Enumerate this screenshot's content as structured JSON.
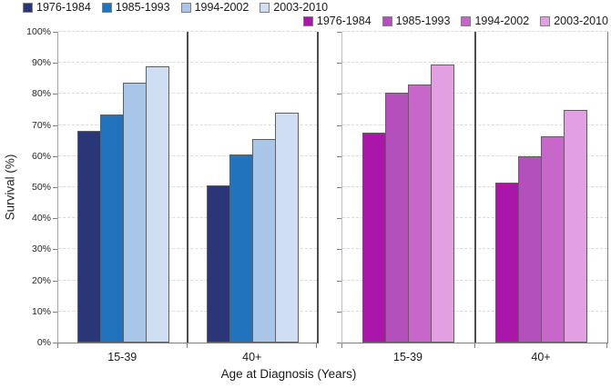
{
  "legends": {
    "blue": {
      "items": [
        {
          "label": "1976-1984",
          "color": "#2B3677"
        },
        {
          "label": "1985-1993",
          "color": "#2173BE"
        },
        {
          "label": "1994-2002",
          "color": "#A9C5E8"
        },
        {
          "label": "2003-2010",
          "color": "#CFDEF2"
        }
      ]
    },
    "pink": {
      "items": [
        {
          "label": "1976-1984",
          "color": "#AA16AA"
        },
        {
          "label": "1985-1993",
          "color": "#B450BC"
        },
        {
          "label": "1994-2002",
          "color": "#C767C9"
        },
        {
          "label": "2003-2010",
          "color": "#E29FE1"
        }
      ]
    }
  },
  "chart_data": {
    "type": "bar",
    "title": "",
    "xlabel": "Age at Diagnosis (Years)",
    "ylabel": "Survival (%)",
    "ylim": [
      0,
      100
    ],
    "y_tick_labels": [
      "0%",
      "10%",
      "20%",
      "30%",
      "40%",
      "50%",
      "60%",
      "70%",
      "80%",
      "90%",
      "100%"
    ],
    "grid": true,
    "legend_position": "top",
    "panels": [
      {
        "name": "blue",
        "categories": [
          "15-39",
          "40+"
        ],
        "series": [
          {
            "name": "1976-1984",
            "color": "#2B3677",
            "values": [
              68,
              50.5
            ]
          },
          {
            "name": "1985-1993",
            "color": "#2173BE",
            "values": [
              73.5,
              60.5
            ]
          },
          {
            "name": "1994-2002",
            "color": "#A9C5E8",
            "values": [
              83.5,
              65.5
            ]
          },
          {
            "name": "2003-2010",
            "color": "#CFDEF2",
            "values": [
              89,
              74
            ]
          }
        ]
      },
      {
        "name": "pink",
        "categories": [
          "15-39",
          "40+"
        ],
        "series": [
          {
            "name": "1976-1984",
            "color": "#AA16AA",
            "values": [
              67.5,
              51.5
            ]
          },
          {
            "name": "1985-1993",
            "color": "#B450BC",
            "values": [
              80.5,
              60
            ]
          },
          {
            "name": "1994-2002",
            "color": "#C767C9",
            "values": [
              83,
              66.5
            ]
          },
          {
            "name": "2003-2010",
            "color": "#E29FE1",
            "values": [
              89.5,
              75
            ]
          }
        ]
      }
    ]
  }
}
